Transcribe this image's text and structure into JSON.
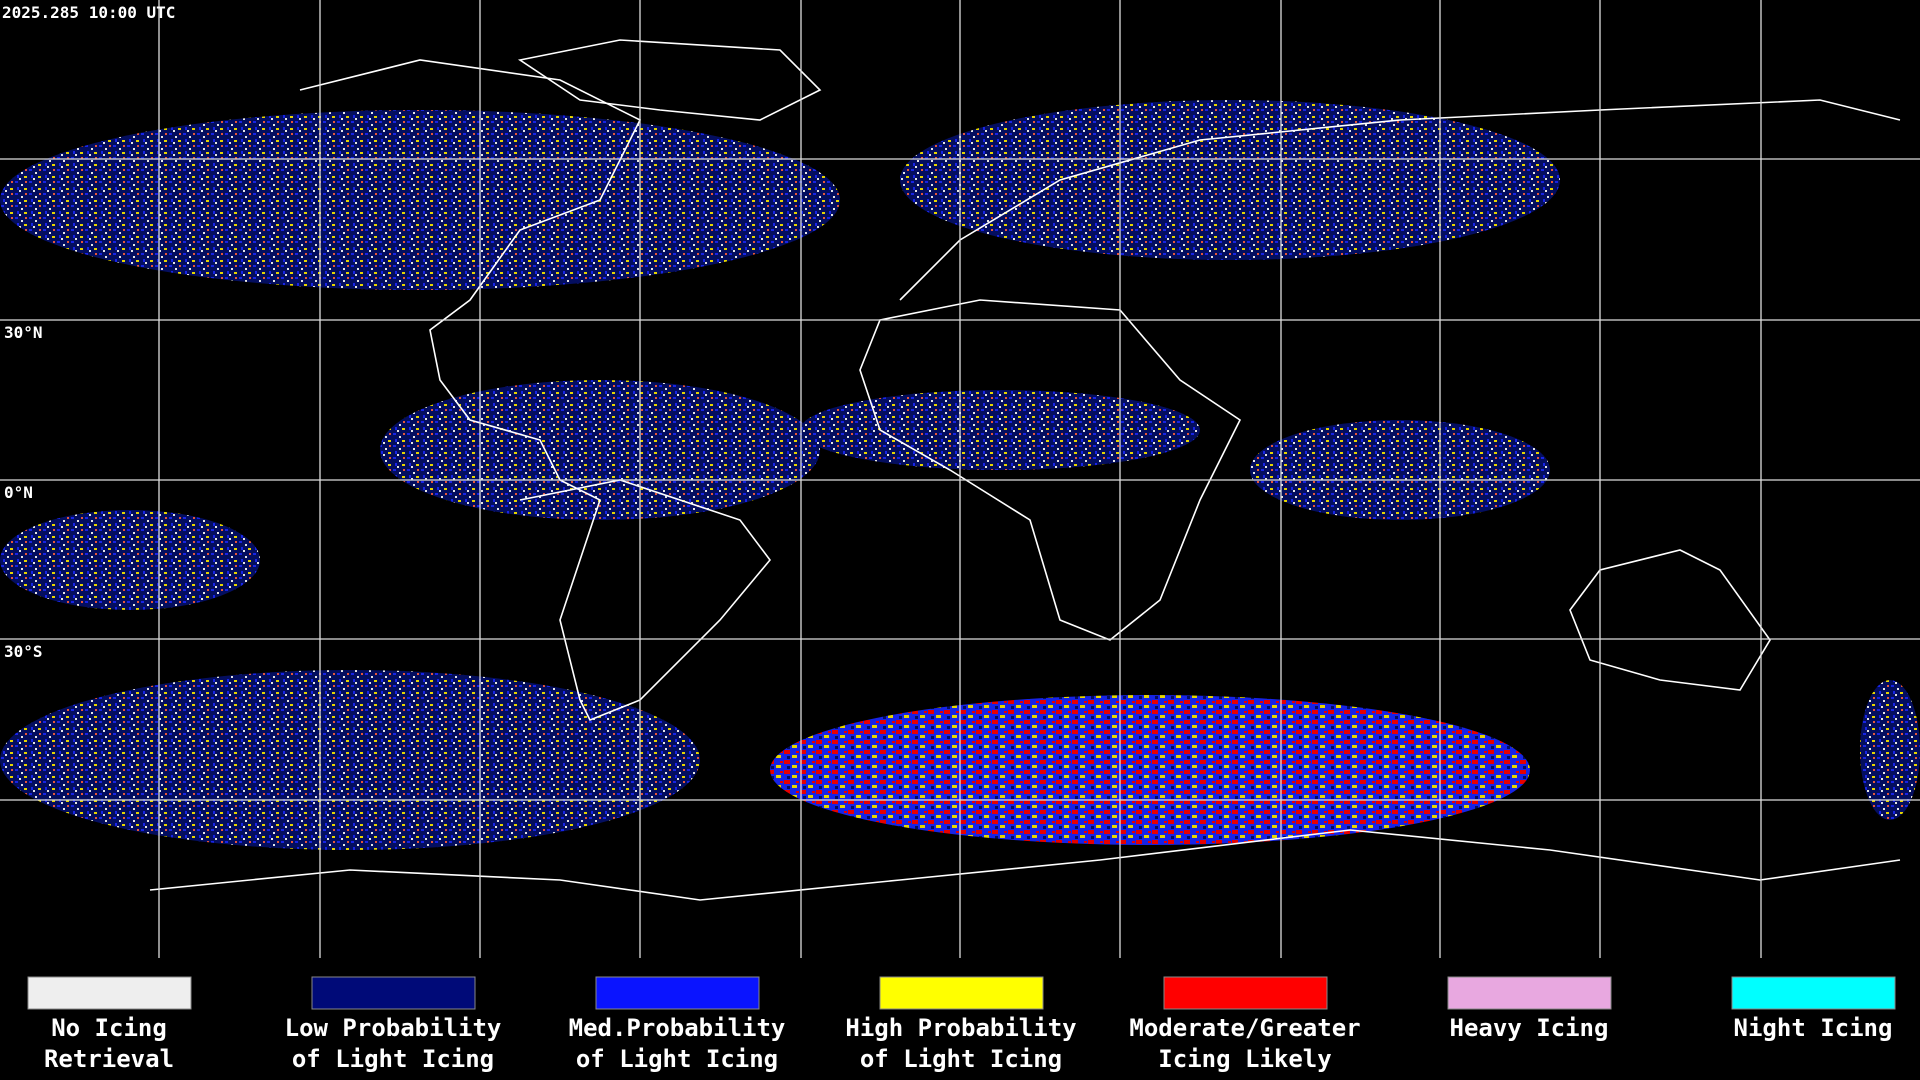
{
  "header": {
    "timestamp": "2025.285 10:00 UTC"
  },
  "map": {
    "latitude_labels": [
      "30°N",
      "0°N",
      "30°S"
    ]
  },
  "legend": [
    {
      "label": [
        "No Icing",
        "Retrieval"
      ],
      "color": "#eeeeee"
    },
    {
      "label": [
        "Low Probability",
        "of Light Icing"
      ],
      "color": "#000a78"
    },
    {
      "label": [
        "Med.Probability",
        "of Light Icing"
      ],
      "color": "#0a14ff"
    },
    {
      "label": [
        "High Probability",
        "of Light Icing"
      ],
      "color": "#ffff00"
    },
    {
      "label": [
        "Moderate/Greater",
        "Icing Likely"
      ],
      "color": "#ff0000"
    },
    {
      "label": [
        "Heavy Icing"
      ],
      "color": "#e8a8e0"
    },
    {
      "label": [
        "Night Icing"
      ],
      "color": "#00ffff"
    }
  ]
}
